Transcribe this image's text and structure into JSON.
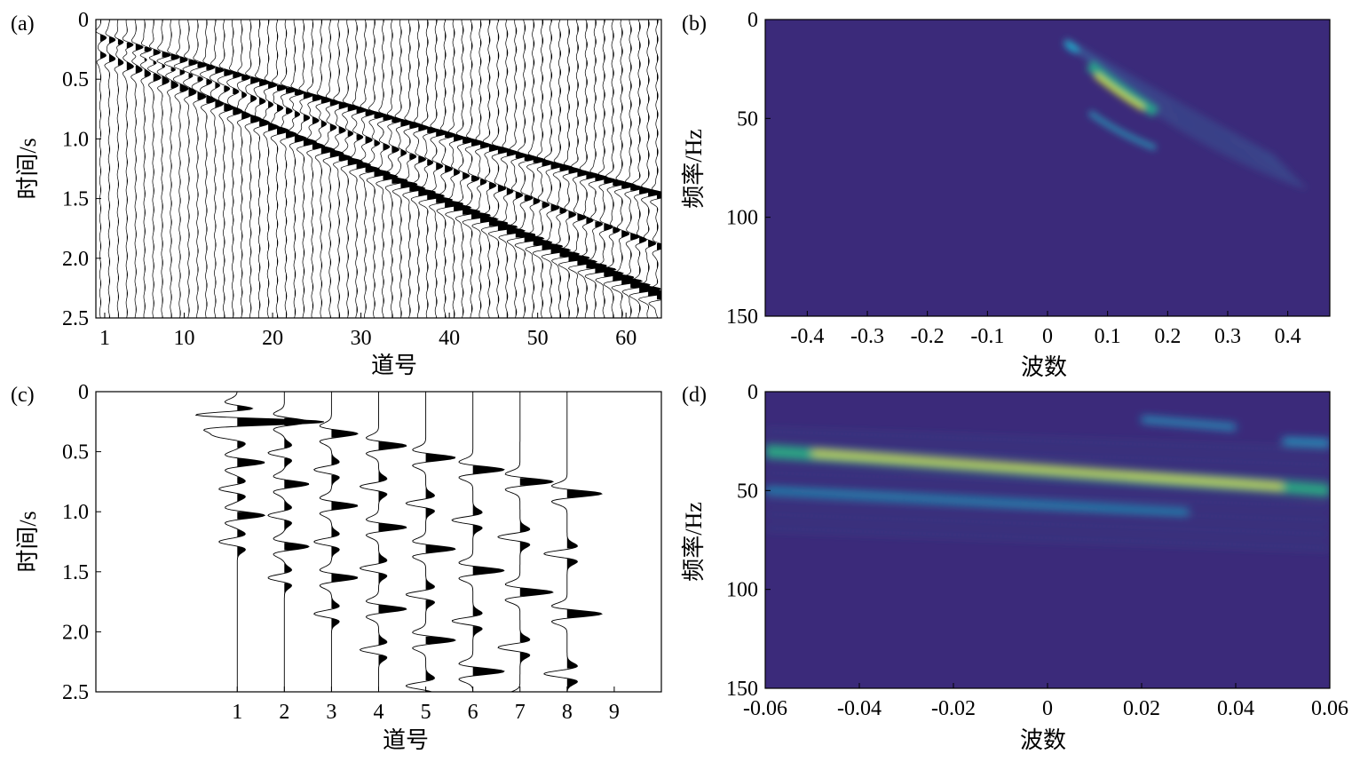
{
  "panels": [
    {
      "id": "a",
      "label": "(a)",
      "xlabel": "道号",
      "ylabel": "时间/s",
      "xticks": [
        "1",
        "10",
        "20",
        "30",
        "40",
        "50",
        "60"
      ],
      "yticks": [
        "0",
        "0.5",
        "1.0",
        "1.5",
        "2.0",
        "2.5"
      ]
    },
    {
      "id": "b",
      "label": "(b)",
      "xlabel": "波数",
      "ylabel": "频率/Hz",
      "xticks": [
        "-0.4",
        "-0.3",
        "-0.2",
        "-0.1",
        "0",
        "0.1",
        "0.2",
        "0.3",
        "0.4"
      ],
      "yticks": [
        "0",
        "50",
        "100",
        "150"
      ]
    },
    {
      "id": "c",
      "label": "(c)",
      "xlabel": "道号",
      "ylabel": "时间/s",
      "xticks": [
        "1",
        "2",
        "3",
        "4",
        "5",
        "6",
        "7",
        "8",
        "9"
      ],
      "yticks": [
        "0",
        "0.5",
        "1.0",
        "1.5",
        "2.0",
        "2.5"
      ]
    },
    {
      "id": "d",
      "label": "(d)",
      "xlabel": "波数",
      "ylabel": "频率/Hz",
      "xticks": [
        "-0.06",
        "-0.04",
        "-0.02",
        "0",
        "0.02",
        "0.04",
        "0.06"
      ],
      "yticks": [
        "0",
        "50",
        "100",
        "150"
      ]
    }
  ],
  "chart_data": [
    {
      "type": "wiggle",
      "panel": "a",
      "traces": 64,
      "xlim": [
        0,
        64
      ],
      "ylim": [
        0,
        2.5
      ],
      "events": [
        {
          "t0": 0.15,
          "dip_s_per_trace": 0.021
        },
        {
          "t0": 0.2,
          "dip_s_per_trace": 0.027
        },
        {
          "t0": 0.25,
          "dip_s_per_trace": 0.033
        },
        {
          "t0": 0.3,
          "dip_s_per_trace": 0.032
        }
      ]
    },
    {
      "type": "heatmap",
      "panel": "b",
      "xlim": [
        -0.47,
        0.47
      ],
      "ylim": [
        0,
        150
      ],
      "colormap": "viridis",
      "background": "#3b2a7a",
      "energy": [
        {
          "k": 0.11,
          "f": 38,
          "peak": 1.0
        },
        {
          "k": 0.05,
          "f": 14,
          "peak": 0.55
        },
        {
          "k": 0.1,
          "f": 50,
          "peak": 0.55
        }
      ]
    },
    {
      "type": "wiggle",
      "panel": "c",
      "traces": 8,
      "xlim": [
        -2,
        10
      ],
      "ylim": [
        0,
        2.5
      ],
      "xticks_values": [
        1,
        2,
        3,
        4,
        5,
        6,
        7,
        8,
        9
      ]
    },
    {
      "type": "heatmap",
      "panel": "d",
      "xlim": [
        -0.06,
        0.06
      ],
      "ylim": [
        0,
        150
      ],
      "colormap": "viridis",
      "background": "#3b2a7a",
      "energy": [
        {
          "k0": -0.06,
          "f0": 30,
          "k1": 0.06,
          "f1": 50,
          "peak": 1.0
        },
        {
          "k0": -0.06,
          "f0": 50,
          "k1": 0.03,
          "f1": 61,
          "peak": 0.6
        },
        {
          "k0": 0.02,
          "f0": 15,
          "k1": 0.04,
          "f1": 18,
          "peak": 0.55
        },
        {
          "k0": 0.05,
          "f0": 25,
          "k1": 0.06,
          "f1": 28,
          "peak": 0.6
        }
      ]
    }
  ]
}
